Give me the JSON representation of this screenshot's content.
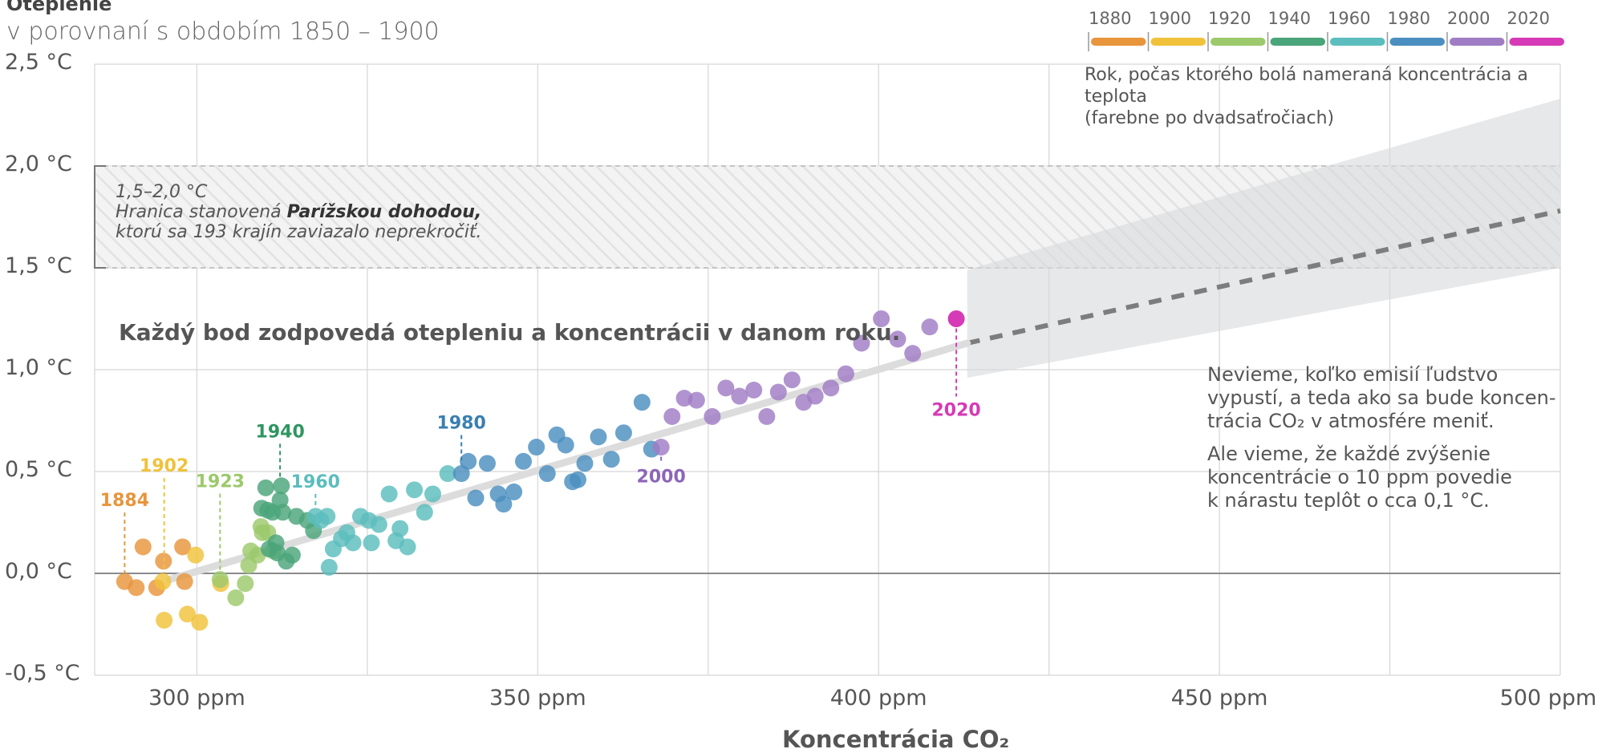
{
  "title": "Oteplenie",
  "subtitle": "v porovnaní s obdobím 1850 – 1900",
  "legend": {
    "years": [
      "1880",
      "1900",
      "1920",
      "1940",
      "1960",
      "1980",
      "2000",
      "2020"
    ],
    "colors": [
      "#e8953c",
      "#f0c23b",
      "#9cc96b",
      "#4aa57a",
      "#5bbdbd",
      "#4a8fc0",
      "#a07cc5",
      "#d63ab6"
    ],
    "note_line1": "Rok, počas ktorého bolá nameraná koncentrácia a teplota",
    "note_line2": "(farebne po dvadsaťročiach)"
  },
  "paris": {
    "range": "1,5–2,0 °C",
    "line1_prefix": "Hranica stanovená ",
    "line1_bold": "Parížskou dohodou,",
    "line2": "ktorú sa 193 krajín zaviazalo neprekročiť."
  },
  "info_text": "Každý bod zodpovedá otepleniu a koncentrácii v danom roku.",
  "future_text": {
    "p1_line1": "Nevieme, koľko emisií ľudstvo",
    "p1_line2": "vypustí, a teda ako sa bude koncen-",
    "p1_line3": "trácia CO₂ v atmosfére meniť.",
    "p2_line1": "Ale vieme, že každé zvýšenie",
    "p2_line2": "koncentrácie o 10 ppm povedie",
    "p2_line3": "k nárastu teplôt o cca 0,1 °C."
  },
  "chart_data": {
    "type": "scatter",
    "title": "Oteplenie",
    "subtitle": "v porovnaní s obdobím 1850 – 1900",
    "xlabel": "Koncentrácia CO₂",
    "x_ticks": [
      300,
      350,
      400,
      450,
      500
    ],
    "x_tick_labels": [
      "300 ppm",
      "350 ppm",
      "400 ppm",
      "450 ppm",
      "500 ppm"
    ],
    "y_ticks": [
      -0.5,
      0.0,
      0.5,
      1.0,
      1.5,
      2.0,
      2.5
    ],
    "y_tick_labels": [
      "-0,5 °C",
      "0,0 °C",
      "0,5 °C",
      "1,0 °C",
      "1,5 °C",
      "2,0 °C",
      "2,5 °C"
    ],
    "xlim": [
      285,
      500
    ],
    "ylim": [
      -0.5,
      2.5
    ],
    "grid": true,
    "paris_band": [
      1.5,
      2.0
    ],
    "trend_line": {
      "x": [
        296,
        413
      ],
      "y": [
        -0.03,
        1.13
      ]
    },
    "projection_line": {
      "x": [
        413,
        500
      ],
      "y": [
        1.13,
        1.78
      ]
    },
    "projection_band": {
      "x": [
        413,
        500
      ],
      "lower": [
        0.96,
        1.5
      ],
      "upper": [
        1.49,
        2.33
      ]
    },
    "series": [
      {
        "name": "1880",
        "color": "#e8953c",
        "points": [
          [
            289.4,
            -0.04
          ],
          [
            291.1,
            -0.07
          ],
          [
            292.1,
            0.13
          ],
          [
            294.1,
            -0.07
          ],
          [
            295.1,
            0.06
          ],
          [
            297.9,
            0.13
          ],
          [
            298.2,
            -0.04
          ]
        ]
      },
      {
        "name": "1900",
        "color": "#f0c23b",
        "points": [
          [
            295.0,
            -0.04
          ],
          [
            295.2,
            -0.23
          ],
          [
            298.6,
            -0.2
          ],
          [
            299.8,
            0.09
          ],
          [
            300.4,
            -0.24
          ],
          [
            303.5,
            -0.05
          ]
        ]
      },
      {
        "name": "1920",
        "color": "#9cc96b",
        "points": [
          [
            303.4,
            -0.03
          ],
          [
            305.7,
            -0.12
          ],
          [
            307.1,
            -0.05
          ],
          [
            307.6,
            0.04
          ],
          [
            307.9,
            0.11
          ],
          [
            308.9,
            0.09
          ],
          [
            309.4,
            0.23
          ],
          [
            309.6,
            0.2
          ],
          [
            310.4,
            0.2
          ],
          [
            311.2,
            0.11
          ]
        ]
      },
      {
        "name": "1940",
        "color": "#4aa57a",
        "points": [
          [
            309.5,
            0.32
          ],
          [
            310.1,
            0.42
          ],
          [
            310.4,
            0.31
          ],
          [
            310.6,
            0.12
          ],
          [
            311.1,
            0.3
          ],
          [
            311.6,
            0.15
          ],
          [
            311.8,
            0.1
          ],
          [
            312.2,
            0.36
          ],
          [
            312.4,
            0.43
          ],
          [
            312.6,
            0.3
          ],
          [
            313.1,
            0.06
          ],
          [
            314.0,
            0.09
          ],
          [
            314.6,
            0.28
          ],
          [
            316.2,
            0.26
          ],
          [
            317.1,
            0.21
          ]
        ]
      },
      {
        "name": "1960",
        "color": "#5bbdbd",
        "points": [
          [
            317.4,
            0.28
          ],
          [
            318.2,
            0.26
          ],
          [
            319.1,
            0.28
          ],
          [
            319.4,
            0.03
          ],
          [
            320.0,
            0.12
          ],
          [
            321.2,
            0.17
          ],
          [
            322.0,
            0.2
          ],
          [
            322.9,
            0.15
          ],
          [
            324.0,
            0.28
          ],
          [
            325.2,
            0.26
          ],
          [
            325.6,
            0.15
          ],
          [
            326.7,
            0.24
          ],
          [
            328.2,
            0.39
          ],
          [
            329.2,
            0.16
          ],
          [
            329.8,
            0.22
          ],
          [
            330.9,
            0.13
          ],
          [
            331.9,
            0.41
          ],
          [
            333.4,
            0.3
          ],
          [
            334.6,
            0.39
          ],
          [
            336.8,
            0.49
          ]
        ]
      },
      {
        "name": "1980",
        "color": "#4a8fc0",
        "points": [
          [
            338.8,
            0.49
          ],
          [
            339.8,
            0.55
          ],
          [
            340.9,
            0.37
          ],
          [
            342.6,
            0.54
          ],
          [
            344.2,
            0.39
          ],
          [
            345.0,
            0.34
          ],
          [
            346.5,
            0.4
          ],
          [
            347.9,
            0.55
          ],
          [
            349.8,
            0.62
          ],
          [
            351.4,
            0.49
          ],
          [
            352.8,
            0.68
          ],
          [
            354.1,
            0.63
          ],
          [
            355.1,
            0.45
          ],
          [
            355.9,
            0.46
          ],
          [
            356.9,
            0.54
          ],
          [
            358.9,
            0.67
          ],
          [
            360.8,
            0.56
          ],
          [
            362.6,
            0.69
          ],
          [
            365.3,
            0.84
          ],
          [
            366.7,
            0.61
          ]
        ]
      },
      {
        "name": "2000",
        "color": "#a07cc5",
        "points": [
          [
            368.1,
            0.62
          ],
          [
            369.7,
            0.77
          ],
          [
            371.5,
            0.86
          ],
          [
            373.3,
            0.85
          ],
          [
            375.6,
            0.77
          ],
          [
            377.6,
            0.91
          ],
          [
            379.6,
            0.87
          ],
          [
            381.7,
            0.9
          ],
          [
            383.6,
            0.77
          ],
          [
            385.3,
            0.89
          ],
          [
            387.3,
            0.95
          ],
          [
            389.0,
            0.84
          ],
          [
            390.7,
            0.87
          ],
          [
            393.0,
            0.91
          ],
          [
            395.2,
            0.98
          ],
          [
            397.5,
            1.13
          ],
          [
            400.4,
            1.25
          ],
          [
            402.8,
            1.15
          ],
          [
            405.0,
            1.08
          ],
          [
            407.5,
            1.21
          ]
        ]
      },
      {
        "name": "2020",
        "color": "#d63ab6",
        "points": [
          [
            411.4,
            1.25
          ]
        ]
      }
    ],
    "annotations": [
      {
        "text": "1884",
        "x": 289.4,
        "y": -0.04,
        "color": "#e8953c"
      },
      {
        "text": "1902",
        "x": 295.2,
        "y": -0.04,
        "color": "#f0c23b"
      },
      {
        "text": "1923",
        "x": 303.4,
        "y": -0.03,
        "color": "#9cc96b"
      },
      {
        "text": "1940",
        "x": 312.2,
        "y": 0.42,
        "color": "#2e9660"
      },
      {
        "text": "1960",
        "x": 317.4,
        "y": 0.28,
        "color": "#5bbdbd"
      },
      {
        "text": "1980",
        "x": 338.8,
        "y": 0.49,
        "color": "#3a7fb0"
      },
      {
        "text": "2000",
        "x": 368.1,
        "y": 0.62,
        "color": "#8c66b8"
      },
      {
        "text": "2020",
        "x": 411.4,
        "y": 1.25,
        "color": "#d63ab6"
      }
    ]
  }
}
